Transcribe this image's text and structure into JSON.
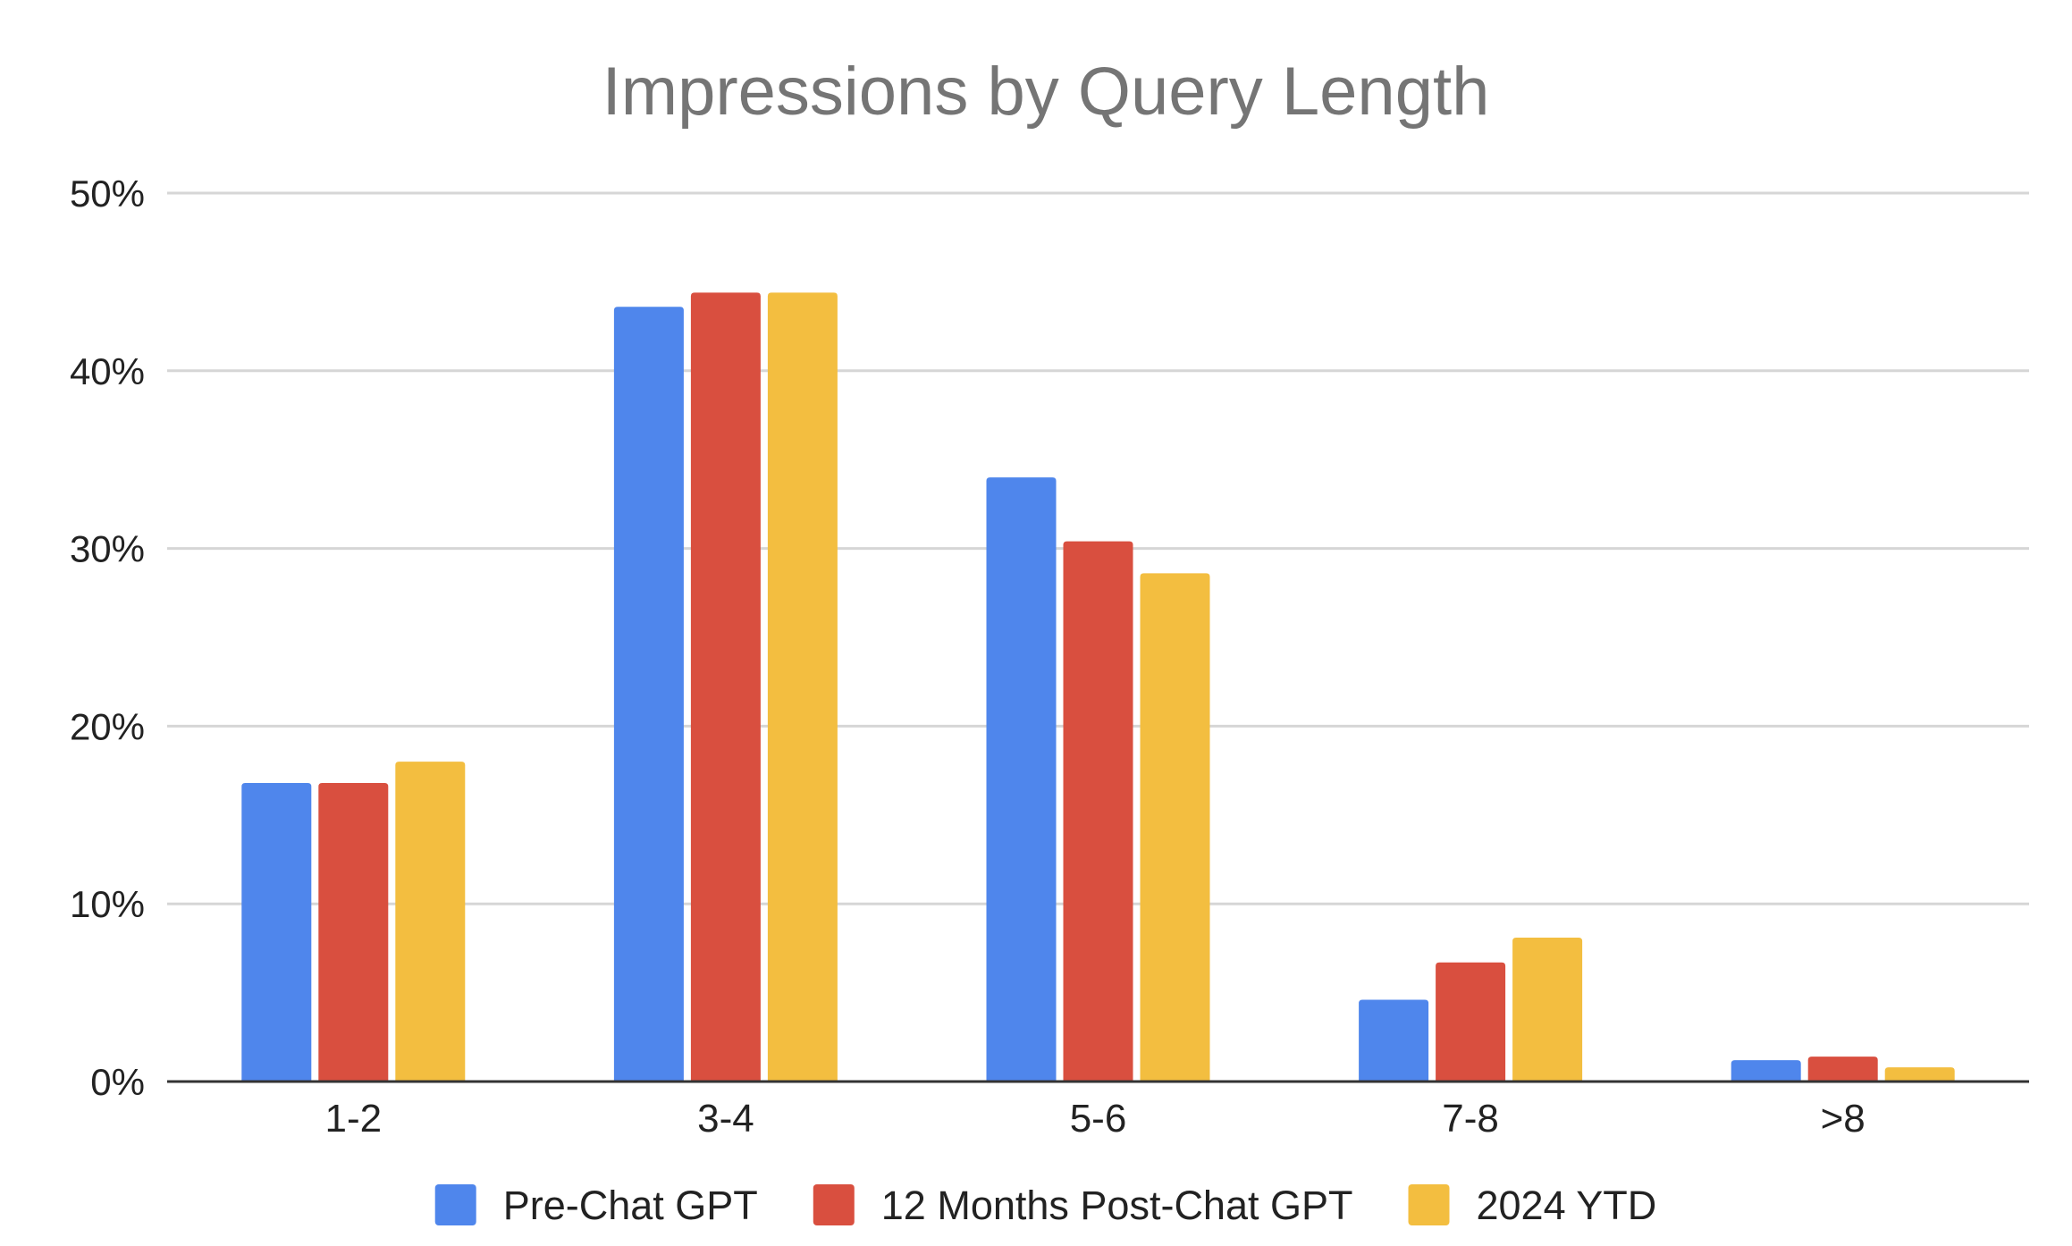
{
  "chart_data": {
    "type": "bar",
    "title": "Impressions by Query Length",
    "xlabel": "",
    "ylabel": "",
    "categories": [
      "1-2",
      "3-4",
      "5-6",
      "7-8",
      ">8"
    ],
    "series": [
      {
        "name": "Pre-Chat GPT",
        "color": "#4f86ec",
        "values": [
          16.8,
          43.6,
          34.0,
          4.6,
          1.2
        ]
      },
      {
        "name": "12 Months Post-Chat GPT",
        "color": "#d94f3f",
        "values": [
          16.8,
          44.4,
          30.4,
          6.7,
          1.4
        ]
      },
      {
        "name": "2024 YTD",
        "color": "#f3be40",
        "values": [
          18.0,
          44.4,
          28.6,
          8.1,
          0.8
        ]
      }
    ],
    "ylim": [
      0,
      50
    ],
    "yticks": [
      0,
      10,
      20,
      30,
      40,
      50
    ],
    "ytick_labels": [
      "0%",
      "10%",
      "20%",
      "30%",
      "40%",
      "50%"
    ],
    "grid": true,
    "legend_position": "bottom"
  }
}
